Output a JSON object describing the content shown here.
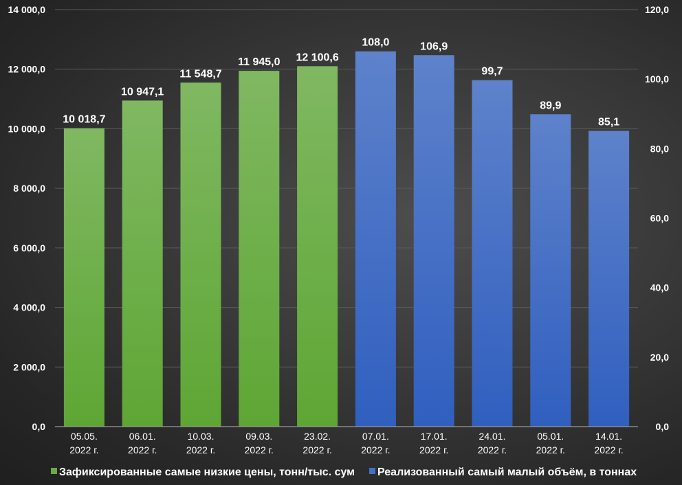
{
  "chart_data": {
    "type": "bar",
    "title": "",
    "xlabel": "",
    "categories": [
      [
        "05.05.",
        "2022 г."
      ],
      [
        "06.01.",
        "2022 г."
      ],
      [
        "10.03.",
        "2022 г."
      ],
      [
        "09.03.",
        "2022 г."
      ],
      [
        "23.02.",
        "2022 г."
      ],
      [
        "07.01.",
        "2022 г."
      ],
      [
        "17.01.",
        "2022 г."
      ],
      [
        "24.01.",
        "2022 г."
      ],
      [
        "05.01.",
        "2022 г."
      ],
      [
        "14.01.",
        "2022 г."
      ]
    ],
    "series": [
      {
        "name": "Зафиксированные самые низкие цены, тонн/тыс. сум",
        "axis": "left",
        "color": "#6aab43",
        "color_light": "#80b862",
        "color_dark": "#5ea634",
        "category_indices": [
          0,
          1,
          2,
          3,
          4
        ],
        "values": [
          10018.7,
          10947.1,
          11548.7,
          11945.0,
          12100.6
        ],
        "labels": [
          "10 018,7",
          "10 947,1",
          "11 548,7",
          "11 945,0",
          "12 100,6"
        ]
      },
      {
        "name": "Реализованный самый малый объём, в тоннах",
        "axis": "right",
        "color": "#4470c4",
        "color_light": "#5e82cb",
        "color_dark": "#305fbf",
        "category_indices": [
          5,
          6,
          7,
          8,
          9
        ],
        "values": [
          108.0,
          106.9,
          99.7,
          89.9,
          85.1
        ],
        "labels": [
          "108,0",
          "106,9",
          "99,7",
          "89,9",
          "85,1"
        ]
      }
    ],
    "y_left": {
      "ylim": [
        0,
        14000
      ],
      "ticks": [
        0,
        2000,
        4000,
        6000,
        8000,
        10000,
        12000,
        14000
      ],
      "tick_labels": [
        "0,0",
        "2 000,0",
        "4 000,0",
        "6 000,0",
        "8 000,0",
        "10 000,0",
        "12 000,0",
        "14 000,0"
      ]
    },
    "y_right": {
      "ylim": [
        0,
        120
      ],
      "ticks": [
        0,
        20,
        40,
        60,
        80,
        100,
        120
      ],
      "tick_labels": [
        "0,0",
        "20,0",
        "40,0",
        "60,0",
        "80,0",
        "100,0",
        "120,0"
      ]
    },
    "grid": true,
    "legend": "bottom"
  }
}
